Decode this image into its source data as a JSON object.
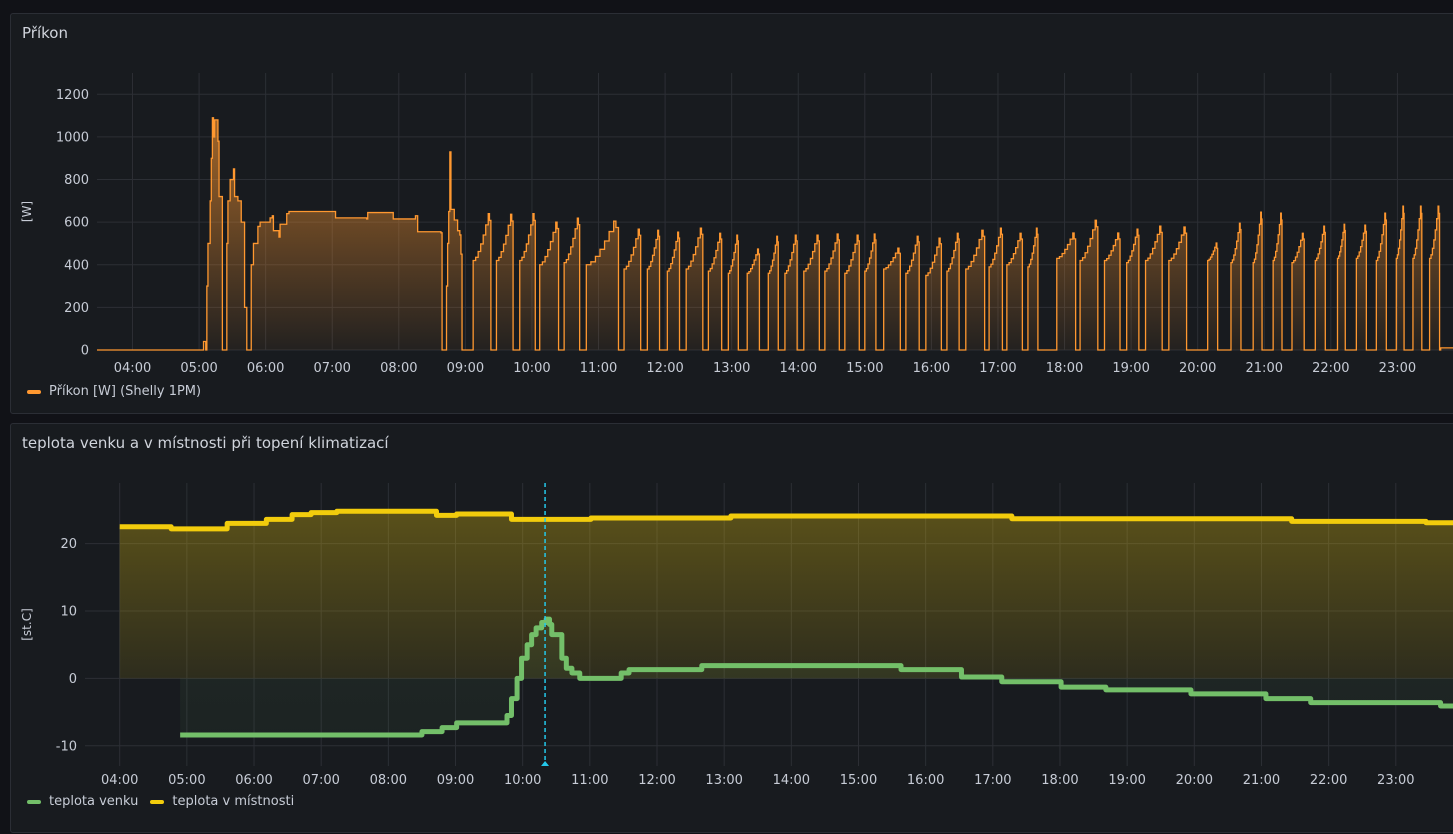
{
  "colors": {
    "power": "#ff9830",
    "outdoor": "#73bf69",
    "room": "#f2cc0c",
    "cursor": "#24c8ea",
    "grid": "#2c2f35",
    "tick": "#c7ccd6"
  },
  "chart_data": [
    {
      "type": "area",
      "title": "Příkon",
      "ylabel": "[W]",
      "xlabel": "",
      "xlim": [
        "03:28",
        "23:51"
      ],
      "ylim": [
        0,
        1300
      ],
      "yticks": [
        0,
        200,
        400,
        600,
        800,
        1000,
        1200
      ],
      "xticks": [
        "04:00",
        "05:00",
        "06:00",
        "07:00",
        "08:00",
        "09:00",
        "10:00",
        "11:00",
        "12:00",
        "13:00",
        "14:00",
        "15:00",
        "16:00",
        "17:00",
        "18:00",
        "19:00",
        "20:00",
        "21:00",
        "22:00",
        "23:00"
      ],
      "legend": "bottom-left",
      "grid": true,
      "series": [
        {
          "name": "Příkon [W] (Shelly 1PM)",
          "points": [
            [
              "05:03",
              0
            ],
            [
              "05:04",
              40
            ],
            [
              "05:06",
              0
            ],
            [
              "05:07",
              300
            ],
            [
              "05:08",
              500
            ],
            [
              "05:10",
              700
            ],
            [
              "05:11",
              900
            ],
            [
              "05:12",
              1090
            ],
            [
              "05:13",
              1000
            ],
            [
              "05:14",
              1080
            ],
            [
              "05:16",
              1080
            ],
            [
              "05:17",
              980
            ],
            [
              "05:18",
              720
            ],
            [
              "05:20",
              720
            ],
            [
              "05:21",
              0
            ],
            [
              "05:24",
              0
            ],
            [
              "05:25",
              500
            ],
            [
              "05:26",
              700
            ],
            [
              "05:28",
              800
            ],
            [
              "05:31",
              850
            ],
            [
              "05:32",
              720
            ],
            [
              "05:35",
              700
            ],
            [
              "05:38",
              600
            ],
            [
              "05:41",
              200
            ],
            [
              "05:43",
              0
            ],
            [
              "05:46",
              0
            ],
            [
              "05:47",
              400
            ],
            [
              "05:49",
              500
            ],
            [
              "05:53",
              580
            ],
            [
              "05:55",
              600
            ],
            [
              "06:04",
              620
            ],
            [
              "06:06",
              630
            ],
            [
              "06:07",
              560
            ],
            [
              "06:12",
              530
            ],
            [
              "06:13",
              590
            ],
            [
              "06:19",
              640
            ],
            [
              "06:21",
              650
            ],
            [
              "07:02",
              650
            ],
            [
              "07:03",
              620
            ],
            [
              "07:31",
              615
            ],
            [
              "07:32",
              645
            ],
            [
              "07:54",
              645
            ],
            [
              "07:55",
              615
            ],
            [
              "08:14",
              615
            ],
            [
              "08:15",
              630
            ],
            [
              "08:17",
              555
            ],
            [
              "08:38",
              550
            ],
            [
              "08:39",
              0
            ],
            [
              "08:42",
              0
            ],
            [
              "08:43",
              300
            ],
            [
              "08:44",
              500
            ],
            [
              "08:45",
              650
            ],
            [
              "08:46",
              930
            ],
            [
              "08:47",
              660
            ],
            [
              "08:50",
              610
            ],
            [
              "08:53",
              560
            ],
            [
              "08:55",
              540
            ],
            [
              "08:56",
              450
            ],
            [
              "08:57",
              0
            ]
          ],
          "cycles": [
            [
              "09:07",
              "09:23",
              420,
              640
            ],
            [
              "09:28",
              "09:43",
              420,
              637
            ],
            [
              "09:49",
              "10:03",
              420,
              640
            ],
            [
              "10:07",
              "10:24",
              400,
              600
            ],
            [
              "10:29",
              "10:43",
              410,
              619
            ],
            [
              "10:49",
              "11:18",
              400,
              605
            ],
            [
              "11:23",
              "11:38",
              380,
              567
            ],
            [
              "11:44",
              "11:55",
              380,
              562
            ],
            [
              "12:02",
              "12:13",
              370,
              553
            ],
            [
              "12:19",
              "12:34",
              380,
              572
            ],
            [
              "12:39",
              "12:51",
              370,
              548
            ],
            [
              "12:57",
              "13:06",
              360,
              539
            ],
            [
              "13:14",
              "13:25",
              360,
              474
            ],
            [
              "13:33",
              "13:42",
              360,
              534
            ],
            [
              "13:48",
              "13:59",
              360,
              539
            ],
            [
              "14:05",
              "14:19",
              370,
              539
            ],
            [
              "14:24",
              "14:37",
              370,
              544
            ],
            [
              "14:42",
              "14:55",
              360,
              539
            ],
            [
              "15:00",
              "15:10",
              370,
              544
            ],
            [
              "15:17",
              "15:32",
              380,
              478
            ],
            [
              "15:37",
              "15:49",
              360,
              534
            ],
            [
              "15:55",
              "16:09",
              350,
              525
            ],
            [
              "16:14",
              "16:25",
              370,
              548
            ],
            [
              "16:31",
              "16:48",
              380,
              562
            ],
            [
              "16:52",
              "17:04",
              390,
              572
            ],
            [
              "17:08",
              "17:22",
              400,
              548
            ],
            [
              "17:27",
              "17:36",
              390,
              572
            ],
            [
              "17:53",
              "18:10",
              430,
              549
            ],
            [
              "18:14",
              "18:30",
              420,
              609
            ],
            [
              "18:36",
              "18:50",
              420,
              549
            ],
            [
              "18:56",
              "19:07",
              410,
              567
            ],
            [
              "19:13",
              "19:28",
              420,
              581
            ],
            [
              "19:34",
              "19:50",
              420,
              577
            ],
            [
              "20:09",
              "20:18",
              420,
              502
            ],
            [
              "20:30",
              "20:39",
              410,
              595
            ],
            [
              "20:50",
              "20:58",
              410,
              647
            ],
            [
              "21:08",
              "21:16",
              420,
              642
            ],
            [
              "21:25",
              "21:36",
              410,
              548
            ],
            [
              "21:46",
              "21:55",
              420,
              581
            ],
            [
              "22:06",
              "22:13",
              430,
              590
            ],
            [
              "22:23",
              "22:32",
              430,
              586
            ],
            [
              "22:41",
              "22:50",
              420,
              642
            ],
            [
              "22:59",
              "23:06",
              430,
              675
            ],
            [
              "23:14",
              "23:22",
              430,
              675
            ],
            [
              "23:29",
              "23:38",
              430,
              675
            ]
          ],
          "tail": [
            [
              "23:39",
              10
            ],
            [
              "23:51",
              5
            ]
          ]
        }
      ]
    },
    {
      "type": "line",
      "title": "teplota venku a v místnosti při topení klimatizací",
      "ylabel": "[st.C]",
      "xlabel": "",
      "xlim": [
        "03:29",
        "23:52"
      ],
      "ylim": [
        -13,
        29
      ],
      "yticks": [
        -10,
        0,
        10,
        20
      ],
      "xticks": [
        "04:00",
        "05:00",
        "06:00",
        "07:00",
        "08:00",
        "09:00",
        "10:00",
        "11:00",
        "12:00",
        "13:00",
        "14:00",
        "15:00",
        "16:00",
        "17:00",
        "18:00",
        "19:00",
        "20:00",
        "21:00",
        "22:00",
        "23:00"
      ],
      "legend": "bottom-left",
      "grid": true,
      "cursor": "10:20",
      "series": [
        {
          "name": "teplota venku",
          "points": [
            [
              "04:54",
              -8.4
            ],
            [
              "08:30",
              -7.9
            ],
            [
              "08:48",
              -7.3
            ],
            [
              "09:01",
              -6.6
            ],
            [
              "09:46",
              -5.5
            ],
            [
              "09:50",
              -3
            ],
            [
              "09:55",
              0
            ],
            [
              "09:59",
              3
            ],
            [
              "10:04",
              5
            ],
            [
              "10:08",
              6.5
            ],
            [
              "10:12",
              7.5
            ],
            [
              "10:17",
              8.3
            ],
            [
              "10:21",
              8.8
            ],
            [
              "10:24",
              8
            ],
            [
              "10:26",
              6.5
            ],
            [
              "10:33",
              6.5
            ],
            [
              "10:35",
              3
            ],
            [
              "10:39",
              1.5
            ],
            [
              "10:44",
              0.8
            ],
            [
              "10:51",
              0
            ],
            [
              "11:24",
              0
            ],
            [
              "11:28",
              0.8
            ],
            [
              "11:35",
              1.3
            ],
            [
              "12:35",
              1.3
            ],
            [
              "12:40",
              1.9
            ],
            [
              "15:34",
              1.9
            ],
            [
              "15:38",
              1.3
            ],
            [
              "16:14",
              1.3
            ],
            [
              "16:32",
              0.2
            ],
            [
              "17:03",
              0.2
            ],
            [
              "17:08",
              -0.5
            ],
            [
              "17:57",
              -0.5
            ],
            [
              "18:01",
              -1.3
            ],
            [
              "18:37",
              -1.3
            ],
            [
              "18:41",
              -1.7
            ],
            [
              "19:30",
              -1.7
            ],
            [
              "19:57",
              -2.3
            ],
            [
              "21:00",
              -2.3
            ],
            [
              "21:04",
              -3
            ],
            [
              "21:40",
              -3
            ],
            [
              "21:44",
              -3.6
            ],
            [
              "23:36",
              -3.6
            ],
            [
              "23:40",
              -4.1
            ],
            [
              "23:52",
              -4.1
            ]
          ]
        },
        {
          "name": "teplota v místnosti",
          "points": [
            [
              "04:00",
              22.5
            ],
            [
              "04:46",
              22.2
            ],
            [
              "05:36",
              23.0
            ],
            [
              "06:11",
              23.6
            ],
            [
              "06:34",
              24.3
            ],
            [
              "06:51",
              24.6
            ],
            [
              "07:14",
              24.8
            ],
            [
              "08:43",
              24.2
            ],
            [
              "09:01",
              24.4
            ],
            [
              "09:50",
              23.6
            ],
            [
              "11:01",
              23.8
            ],
            [
              "13:06",
              24.1
            ],
            [
              "17:17",
              23.7
            ],
            [
              "21:27",
              23.3
            ],
            [
              "23:27",
              23.1
            ],
            [
              "23:52",
              23.1
            ]
          ]
        }
      ]
    }
  ]
}
